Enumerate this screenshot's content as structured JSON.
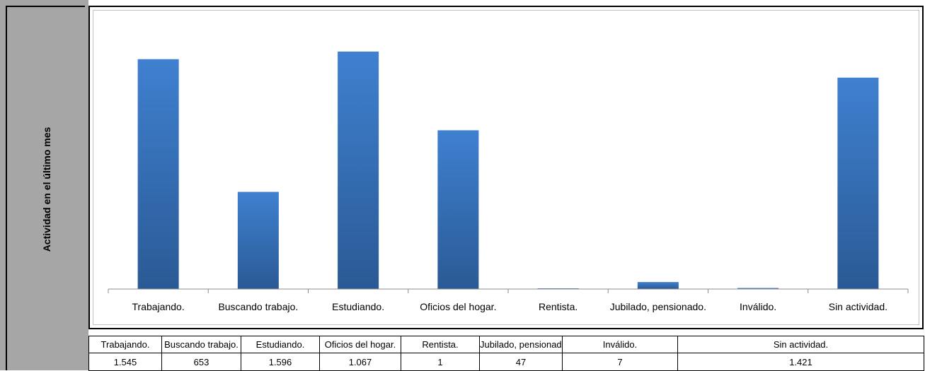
{
  "side_label": "Actividad en el último mes",
  "chart_data": {
    "type": "bar",
    "categories": [
      "Trabajando.",
      "Buscando trabajo.",
      "Estudiando.",
      "Oficios del hogar.",
      "Rentista.",
      "Jubilado, pensionado.",
      "Inválido.",
      "Sin actividad."
    ],
    "values": [
      1545,
      653,
      1596,
      1067,
      1,
      47,
      7,
      1421
    ],
    "ylim": [
      0,
      1700
    ],
    "grid": false,
    "legend": "none",
    "bar_color_top": "#3f80d0",
    "bar_color_bottom": "#2a5a95"
  },
  "table": {
    "headers": [
      "Trabajando.",
      "Buscando trabajo.",
      "Estudiando.",
      "Oficios del hogar.",
      "Rentista.",
      "Jubilado, pensionado.",
      "Inválido.",
      "Sin actividad."
    ],
    "values": [
      "1.545",
      "653",
      "1.596",
      "1.067",
      "1",
      "47",
      "7",
      "1.421"
    ]
  }
}
